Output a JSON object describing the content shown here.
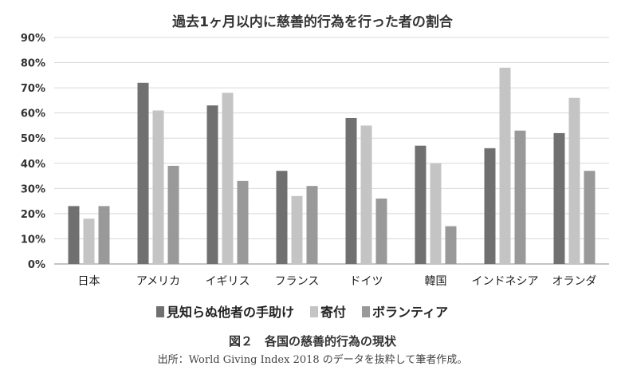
{
  "chart_data": {
    "type": "bar",
    "title": "過去1ヶ月以内に慈善的行為を行った者の割合",
    "categories": [
      "日本",
      "アメリカ",
      "イギリス",
      "フランス",
      "ドイツ",
      "韓国",
      "インドネシア",
      "オランダ"
    ],
    "series": [
      {
        "name": "見知らぬ他者の手助け",
        "color": "#707070",
        "values": [
          23,
          72,
          63,
          37,
          58,
          47,
          46,
          52
        ]
      },
      {
        "name": "寄付",
        "color": "#c4c4c4",
        "values": [
          18,
          61,
          68,
          27,
          55,
          40,
          78,
          66
        ]
      },
      {
        "name": "ボランティア",
        "color": "#999999",
        "values": [
          23,
          39,
          33,
          31,
          26,
          15,
          53,
          37
        ]
      }
    ],
    "ylim": [
      0,
      90
    ],
    "yticks": [
      "0%",
      "10%",
      "20%",
      "30%",
      "40%",
      "50%",
      "60%",
      "70%",
      "80%",
      "90%"
    ],
    "xlabel": "",
    "ylabel": "",
    "grid": true,
    "legend_position": "bottom"
  },
  "figure": {
    "caption": "図２　各国の慈善的行為の現状",
    "source": "出所：World Giving Index 2018 のデータを抜粋して筆者作成。"
  }
}
